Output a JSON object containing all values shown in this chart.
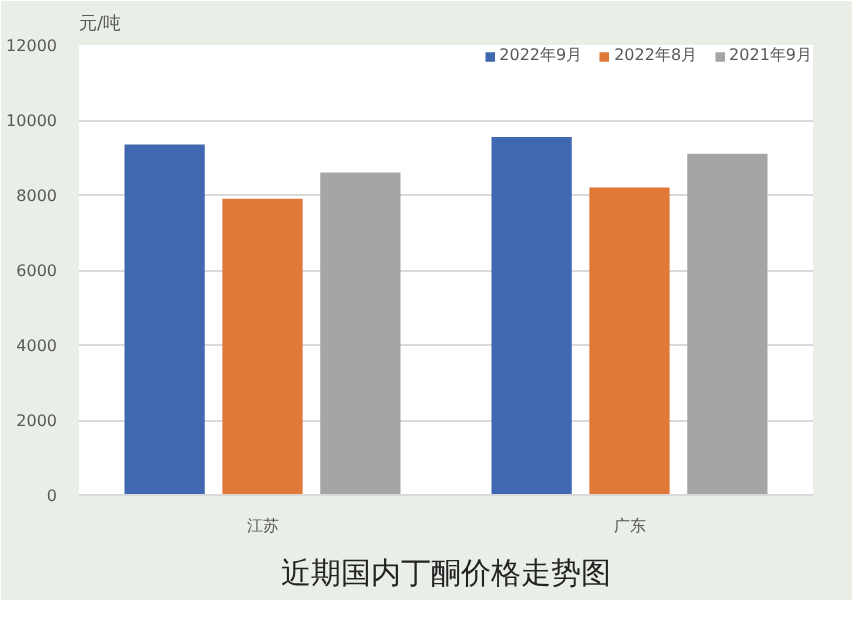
{
  "chart_data": {
    "type": "bar",
    "title": "近期国内丁酮价格走势图",
    "ylabel": "元/吨",
    "categories": [
      "江苏",
      "广东"
    ],
    "series": [
      {
        "name": "2022年9月",
        "color": "#4068b0",
        "values": [
          9350,
          9550
        ]
      },
      {
        "name": "2022年8月",
        "color": "#e07838",
        "values": [
          7900,
          8200
        ]
      },
      {
        "name": "2021年9月",
        "color": "#a5a5a5",
        "values": [
          8600,
          9100
        ]
      }
    ],
    "ylim": [
      0,
      12000
    ],
    "yticks": [
      0,
      2000,
      4000,
      6000,
      8000,
      10000,
      12000
    ],
    "grid": "y",
    "legend": "top right"
  }
}
